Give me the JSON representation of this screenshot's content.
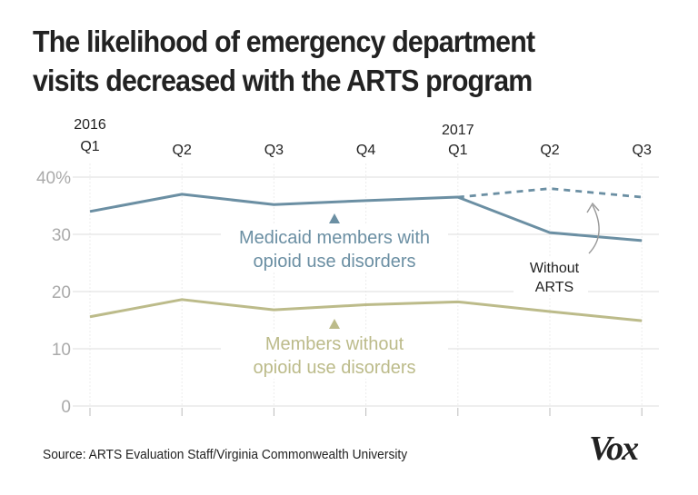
{
  "title_lines": [
    "The likelihood of emergency department",
    "visits decreased with the ARTS program"
  ],
  "source": "Source: ARTS Evaluation Staff/Virginia Commonwealth University",
  "logo": "Vox",
  "colors": {
    "medicaid": "#6b8fa3",
    "members": "#bcbb8a",
    "grid": "#e3e3e3",
    "axis_text": "#aaaaaa",
    "annotation_text": "#222222"
  },
  "chart_data": {
    "type": "line",
    "title": "The likelihood of emergency department visits decreased with the ARTS program",
    "xlabel": "",
    "ylabel": "",
    "ylim": [
      0,
      40
    ],
    "grid": true,
    "x": [
      "2016 Q1",
      "Q2",
      "Q3",
      "Q4",
      "2017 Q1",
      "Q2",
      "Q3"
    ],
    "x_tick_labels": [
      {
        "year": "2016",
        "quarter": "Q1"
      },
      {
        "year": "",
        "quarter": "Q2"
      },
      {
        "year": "",
        "quarter": "Q3"
      },
      {
        "year": "",
        "quarter": "Q4"
      },
      {
        "year": "2017",
        "quarter": "Q1"
      },
      {
        "year": "",
        "quarter": "Q2"
      },
      {
        "year": "",
        "quarter": "Q3"
      }
    ],
    "y_ticks": [
      0,
      10,
      20,
      30,
      40
    ],
    "y_tick_labels": [
      "0",
      "10",
      "20",
      "30",
      "40%"
    ],
    "series": [
      {
        "name": "Medicaid members with opioid use disorders",
        "label_lines": [
          "Medicaid members with",
          "opioid use disorders"
        ],
        "style": "solid",
        "color": "#6b8fa3",
        "values": [
          34.0,
          37.0,
          35.2,
          35.9,
          36.5,
          30.3,
          28.9
        ]
      },
      {
        "name": "Without ARTS",
        "style": "dashed",
        "color": "#6b8fa3",
        "values": [
          null,
          null,
          null,
          null,
          36.5,
          38.0,
          36.5
        ]
      },
      {
        "name": "Members without opioid use disorders",
        "label_lines": [
          "Members without",
          "opioid use disorders"
        ],
        "style": "solid",
        "color": "#bcbb8a",
        "values": [
          15.6,
          18.6,
          16.8,
          17.7,
          18.2,
          16.5,
          14.9
        ]
      }
    ],
    "annotations": [
      {
        "text_lines": [
          "Without",
          "ARTS"
        ],
        "points_to": "Without ARTS dashed line"
      }
    ]
  }
}
